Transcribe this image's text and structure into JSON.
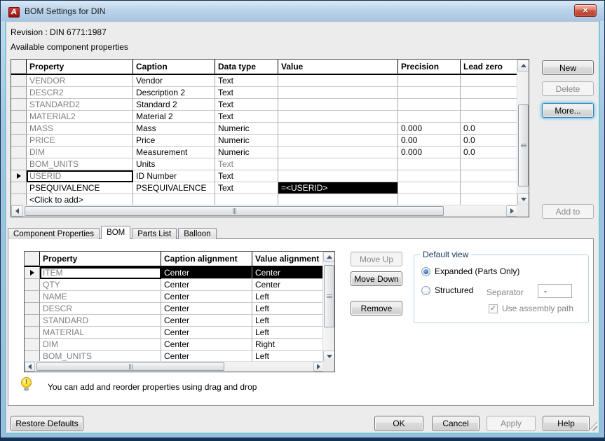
{
  "window": {
    "title": "BOM Settings for DIN"
  },
  "icons": {
    "app": "autocad-a",
    "close": "×",
    "current_row_pointer": "right-triangle",
    "hint": "lightbulb"
  },
  "colors": {
    "titlebar_top": "#D9E8F6",
    "titlebar_bottom": "#A7C5E2",
    "frame_blue": "#9CBDDD",
    "accent_cyan": "#4CD6E2",
    "dialog_bg": "#ECECEC",
    "panel_bg": "#FFFFFF",
    "selection_bg": "#000000",
    "selection_fg": "#FFFFFF",
    "muted_text": "#808080",
    "focus_glow": "#3C7FB1",
    "close_red": "#BC4631",
    "autocad_red": "#C21414"
  },
  "labels": {
    "revision": "Revision : DIN 6771:1987",
    "available": "Available component properties",
    "hint": "You can add and reorder properties using drag and drop"
  },
  "properties_table": {
    "columns": [
      "",
      "Property",
      "Caption",
      "Data type",
      "Value",
      "Precision",
      "Lead zero"
    ],
    "rows": [
      {
        "property": "VENDOR",
        "caption": "Vendor",
        "data_type": "Text",
        "value": "",
        "precision": "",
        "lead_zero": "",
        "muted_property": true,
        "muted_type": false,
        "selected": false,
        "value_highlight": false
      },
      {
        "property": "DESCR2",
        "caption": "Description 2",
        "data_type": "Text",
        "value": "",
        "precision": "",
        "lead_zero": "",
        "muted_property": true,
        "muted_type": false,
        "selected": false,
        "value_highlight": false
      },
      {
        "property": "STANDARD2",
        "caption": "Standard 2",
        "data_type": "Text",
        "value": "",
        "precision": "",
        "lead_zero": "",
        "muted_property": true,
        "muted_type": false,
        "selected": false,
        "value_highlight": false
      },
      {
        "property": "MATERIAL2",
        "caption": "Material 2",
        "data_type": "Text",
        "value": "",
        "precision": "",
        "lead_zero": "",
        "muted_property": true,
        "muted_type": false,
        "selected": false,
        "value_highlight": false
      },
      {
        "property": "MASS",
        "caption": "Mass",
        "data_type": "Numeric",
        "value": "",
        "precision": "0.000",
        "lead_zero": "0.0",
        "muted_property": true,
        "muted_type": false,
        "selected": false,
        "value_highlight": false
      },
      {
        "property": "PRICE",
        "caption": "Price",
        "data_type": "Numeric",
        "value": "",
        "precision": "0.00",
        "lead_zero": "0.0",
        "muted_property": true,
        "muted_type": false,
        "selected": false,
        "value_highlight": false
      },
      {
        "property": "DIM",
        "caption": "Measurement",
        "data_type": "Numeric",
        "value": "",
        "precision": "0.000",
        "lead_zero": "0.0",
        "muted_property": true,
        "muted_type": false,
        "selected": false,
        "value_highlight": false
      },
      {
        "property": "BOM_UNITS",
        "caption": "Units",
        "data_type": "Text",
        "value": "",
        "precision": "",
        "lead_zero": "",
        "muted_property": true,
        "muted_type": true,
        "selected": false,
        "value_highlight": false
      },
      {
        "property": "USERID",
        "caption": "ID Number",
        "data_type": "Text",
        "value": "",
        "precision": "",
        "lead_zero": "",
        "muted_property": true,
        "muted_type": false,
        "selected": true,
        "value_highlight": false
      },
      {
        "property": "PSEQUIVALENCE",
        "caption": "PSEQUIVALENCE",
        "data_type": "Text",
        "value": "=<USERID>",
        "precision": "",
        "lead_zero": "",
        "muted_property": false,
        "muted_type": false,
        "selected": false,
        "value_highlight": true
      },
      {
        "property": "<Click to add>",
        "caption": "",
        "data_type": "",
        "value": "",
        "precision": "",
        "lead_zero": "",
        "muted_property": false,
        "muted_type": false,
        "selected": false,
        "value_highlight": false
      }
    ]
  },
  "side_buttons": [
    {
      "label": "New",
      "state": "enabled"
    },
    {
      "label": "Delete",
      "state": "disabled"
    },
    {
      "label": "More...",
      "state": "focused"
    },
    {
      "label": "Add to",
      "state": "disabled"
    }
  ],
  "tabs": [
    {
      "label": "Component Properties",
      "active": false
    },
    {
      "label": "BOM",
      "active": true
    },
    {
      "label": "Parts List",
      "active": false
    },
    {
      "label": "Balloon",
      "active": false
    }
  ],
  "bom_table": {
    "columns": [
      "",
      "Property",
      "Caption alignment",
      "Value alignment"
    ],
    "rows": [
      {
        "property": "ITEM",
        "caption_alignment": "Center",
        "value_alignment": "Center",
        "selected": true
      },
      {
        "property": "QTY",
        "caption_alignment": "Center",
        "value_alignment": "Center",
        "selected": false
      },
      {
        "property": "NAME",
        "caption_alignment": "Center",
        "value_alignment": "Left",
        "selected": false
      },
      {
        "property": "DESCR",
        "caption_alignment": "Center",
        "value_alignment": "Left",
        "selected": false
      },
      {
        "property": "STANDARD",
        "caption_alignment": "Center",
        "value_alignment": "Left",
        "selected": false
      },
      {
        "property": "MATERIAL",
        "caption_alignment": "Center",
        "value_alignment": "Left",
        "selected": false
      },
      {
        "property": "DIM",
        "caption_alignment": "Center",
        "value_alignment": "Right",
        "selected": false
      },
      {
        "property": "BOM_UNITS",
        "caption_alignment": "Center",
        "value_alignment": "Left",
        "selected": false
      }
    ]
  },
  "bom_buttons": [
    {
      "label": "Move Up",
      "state": "disabled"
    },
    {
      "label": "Move Down",
      "state": "enabled"
    },
    {
      "label": "Remove",
      "state": "enabled"
    }
  ],
  "default_view": {
    "title": "Default view",
    "options": [
      {
        "label": "Expanded (Parts Only)",
        "selected": true
      },
      {
        "label": "Structured",
        "selected": false
      }
    ],
    "separator_label": "Separator",
    "separator_value": "-",
    "assembly_checkbox": {
      "label": "Use assembly path",
      "checked": true,
      "disabled": true
    }
  },
  "footer_buttons": [
    {
      "label": "Restore Defaults",
      "state": "enabled"
    },
    {
      "label": "OK",
      "state": "enabled"
    },
    {
      "label": "Cancel",
      "state": "enabled"
    },
    {
      "label": "Apply",
      "state": "disabled"
    },
    {
      "label": "Help",
      "state": "enabled"
    }
  ]
}
